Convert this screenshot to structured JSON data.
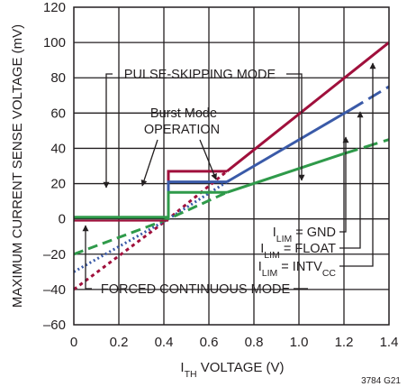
{
  "chart_data": {
    "type": "line",
    "xlabel_main": "I",
    "xlabel_sub": "TH",
    "xlabel_rest": " VOLTAGE (V)",
    "ylabel": "MAXIMUM CURRENT SENSE VOLTAGE (mV)",
    "xlim": [
      0,
      1.4
    ],
    "ylim": [
      -60,
      120
    ],
    "x_ticks": [
      "0",
      "0.2",
      "0.4",
      "0.6",
      "0.8",
      "1.0",
      "1.2",
      "1.4"
    ],
    "y_ticks": [
      "120",
      "100",
      "80",
      "60",
      "40",
      "20",
      "0",
      "–20",
      "–40",
      "–60"
    ],
    "grid": true,
    "figure_id": "3784 G21",
    "colors": {
      "intvcc": "#a0103c",
      "float": "#3a5aa8",
      "gnd": "#2f9a4a",
      "burst": "#2f9a4a",
      "axis": "#231f20",
      "grid": "#231f20"
    },
    "series": [
      {
        "key": "intvcc",
        "label_main": "I",
        "label_sub": "LIM",
        "label_eq": " = INTV",
        "label_sub2": "CC",
        "forced_continuous": [
          [
            0,
            -40
          ],
          [
            0.42,
            0
          ],
          [
            0.68,
            27
          ]
        ],
        "solid": [
          [
            0.68,
            27
          ],
          [
            1.4,
            100
          ]
        ],
        "burst_box": [
          [
            0.42,
            0
          ],
          [
            0.42,
            27
          ],
          [
            0.68,
            27
          ]
        ]
      },
      {
        "key": "float",
        "label_main": "I",
        "label_sub": "LIM",
        "label_eq": " = FLOAT",
        "label_sub2": "",
        "forced_continuous": [
          [
            0,
            -30
          ],
          [
            0.42,
            0
          ],
          [
            0.68,
            21
          ]
        ],
        "solid": [
          [
            0.68,
            21
          ],
          [
            1.23,
            62
          ]
        ],
        "dashed": [
          [
            1.23,
            62
          ],
          [
            1.4,
            75
          ]
        ],
        "burst_box": [
          [
            0.42,
            0
          ],
          [
            0.42,
            21
          ],
          [
            0.68,
            21
          ]
        ]
      },
      {
        "key": "gnd",
        "label_main": "I",
        "label_sub": "LIM",
        "label_eq": " = GND",
        "label_sub2": "",
        "forced_continuous": [
          [
            0,
            -20
          ],
          [
            0.42,
            0
          ],
          [
            0.68,
            15
          ]
        ],
        "solid": [
          [
            0.68,
            15
          ],
          [
            1.2,
            37
          ]
        ],
        "dashed": [
          [
            1.2,
            37
          ],
          [
            1.4,
            45
          ]
        ],
        "burst_box": [
          [
            0.42,
            0
          ],
          [
            0.42,
            15
          ],
          [
            0.68,
            15
          ]
        ]
      }
    ],
    "pulse_skipping": [
      [
        0,
        1
      ],
      [
        0.42,
        1
      ]
    ],
    "annotations": {
      "pulse_skipping": "PULSE-SKIPPING MODE",
      "burst_line1": "Burst Mode",
      "burst_line2": "OPERATION",
      "forced_continuous": "FORCED CONTINUOUS MODE"
    }
  }
}
